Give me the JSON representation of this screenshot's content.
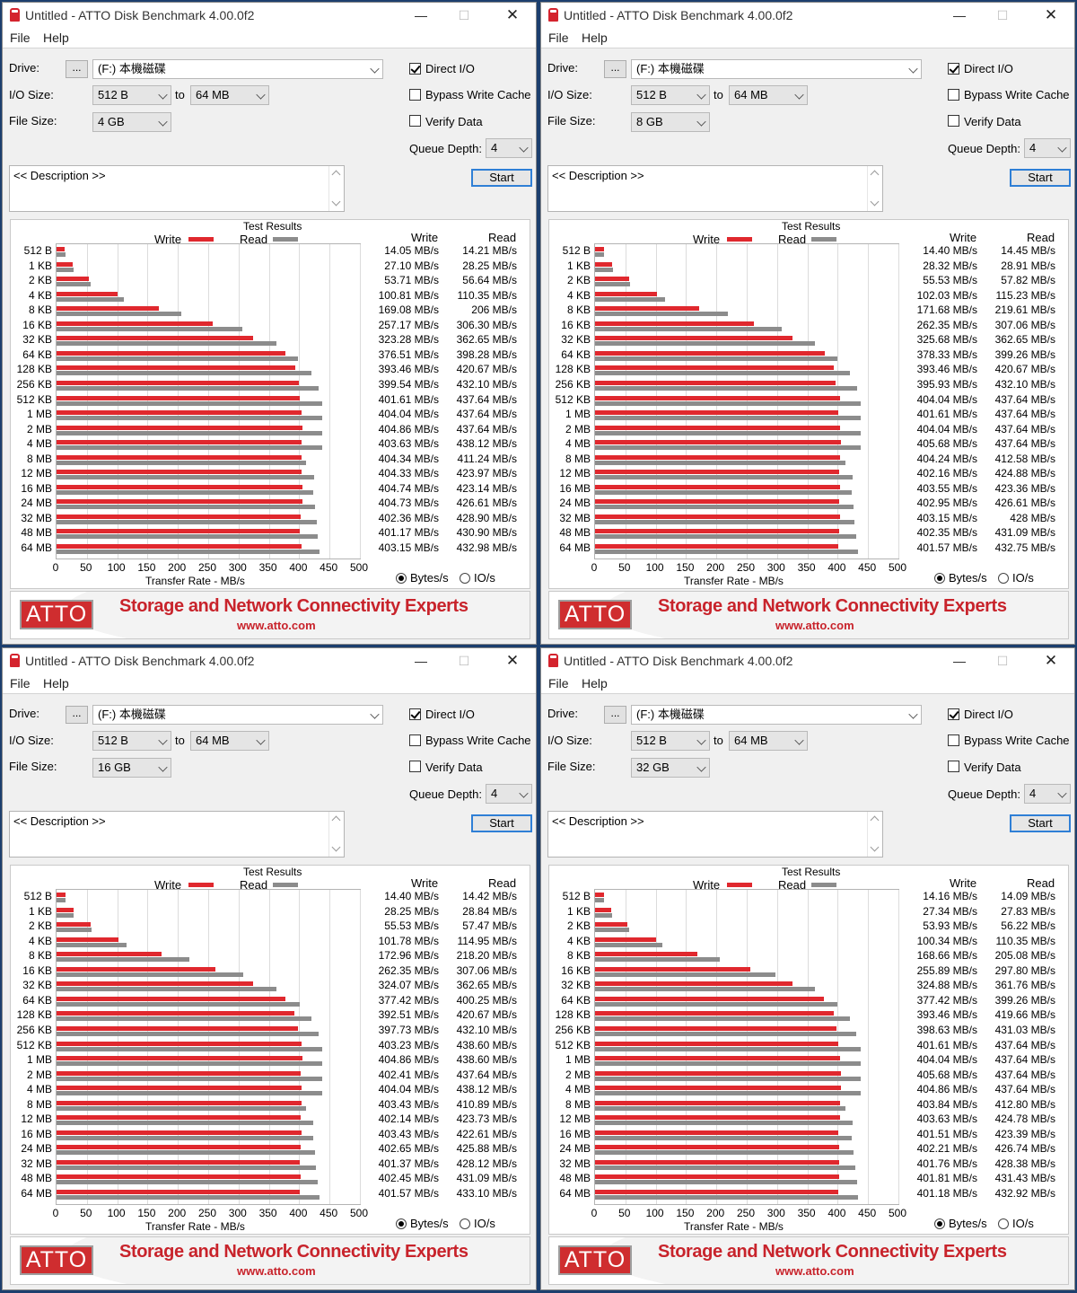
{
  "window": {
    "title": "Untitled - ATTO Disk Benchmark 4.00.0f2",
    "min_glyph": "—",
    "max_glyph": "☐",
    "close_glyph": "✕",
    "menu": [
      "File",
      "Help"
    ]
  },
  "labels": {
    "drive": "Drive:",
    "browse": "...",
    "io_size": "I/O Size:",
    "to": "to",
    "file_size": "File Size:",
    "direct_io": "Direct I/O",
    "bypass_write_cache": "Bypass Write Cache",
    "verify_data": "Verify Data",
    "queue_depth": "Queue Depth:",
    "description": "<< Description >>",
    "start": "Start",
    "test_results": "Test Results",
    "write": "Write",
    "read": "Read",
    "x_axis_label": "Transfer Rate - MB/s",
    "bytes_per_s": "Bytes/s",
    "io_per_s": "IO/s",
    "banner_logo": "ATTO",
    "banner_slogan": "Storage and Network Connectivity Experts",
    "banner_url": "www.atto.com"
  },
  "colors": {
    "write": "#e0282e",
    "read": "#8c8c8c",
    "accent": "#c8232b"
  },
  "chart_data": [
    {
      "type": "bar",
      "title": "Test Results",
      "settings": {
        "drive": "(F:) 本機磁碟",
        "io_min": "512 B",
        "io_max": "64 MB",
        "file_size": "4 GB",
        "queue_depth": "4",
        "direct_io": true,
        "bypass_write_cache": false,
        "verify_data": false,
        "units": "Bytes/s"
      },
      "categories": [
        "512 B",
        "1 KB",
        "2 KB",
        "4 KB",
        "8 KB",
        "16 KB",
        "32 KB",
        "64 KB",
        "128 KB",
        "256 KB",
        "512 KB",
        "1 MB",
        "2 MB",
        "4 MB",
        "8 MB",
        "12 MB",
        "16 MB",
        "24 MB",
        "32 MB",
        "48 MB",
        "64 MB"
      ],
      "x_ticks": [
        "0",
        "50",
        "100",
        "150",
        "200",
        "250",
        "300",
        "350",
        "400",
        "450",
        "500"
      ],
      "xlabel": "Transfer Rate - MB/s",
      "xlim": [
        0,
        500
      ],
      "series": [
        {
          "name": "Write",
          "values": [
            14.05,
            27.1,
            53.71,
            100.81,
            169.08,
            257.17,
            323.28,
            376.51,
            393.46,
            399.54,
            401.61,
            404.04,
            404.86,
            403.63,
            404.34,
            404.33,
            404.74,
            404.73,
            402.36,
            401.17,
            403.15
          ],
          "labels": [
            "14.05 MB/s",
            "27.10 MB/s",
            "53.71 MB/s",
            "100.81 MB/s",
            "169.08 MB/s",
            "257.17 MB/s",
            "323.28 MB/s",
            "376.51 MB/s",
            "393.46 MB/s",
            "399.54 MB/s",
            "401.61 MB/s",
            "404.04 MB/s",
            "404.86 MB/s",
            "403.63 MB/s",
            "404.34 MB/s",
            "404.33 MB/s",
            "404.74 MB/s",
            "404.73 MB/s",
            "402.36 MB/s",
            "401.17 MB/s",
            "403.15 MB/s"
          ]
        },
        {
          "name": "Read",
          "values": [
            14.21,
            28.25,
            56.64,
            110.35,
            206,
            306.3,
            362.65,
            398.28,
            420.67,
            432.1,
            437.64,
            437.64,
            437.64,
            438.12,
            411.24,
            423.97,
            423.14,
            426.61,
            428.9,
            430.9,
            432.98
          ],
          "labels": [
            "14.21 MB/s",
            "28.25 MB/s",
            "56.64 MB/s",
            "110.35 MB/s",
            "206 MB/s",
            "306.30 MB/s",
            "362.65 MB/s",
            "398.28 MB/s",
            "420.67 MB/s",
            "432.10 MB/s",
            "437.64 MB/s",
            "437.64 MB/s",
            "437.64 MB/s",
            "438.12 MB/s",
            "411.24 MB/s",
            "423.97 MB/s",
            "423.14 MB/s",
            "426.61 MB/s",
            "428.90 MB/s",
            "430.90 MB/s",
            "432.98 MB/s"
          ]
        }
      ]
    },
    {
      "type": "bar",
      "title": "Test Results",
      "settings": {
        "drive": "(F:) 本機磁碟",
        "io_min": "512 B",
        "io_max": "64 MB",
        "file_size": "8 GB",
        "queue_depth": "4",
        "direct_io": true,
        "bypass_write_cache": false,
        "verify_data": false,
        "units": "Bytes/s"
      },
      "categories": [
        "512 B",
        "1 KB",
        "2 KB",
        "4 KB",
        "8 KB",
        "16 KB",
        "32 KB",
        "64 KB",
        "128 KB",
        "256 KB",
        "512 KB",
        "1 MB",
        "2 MB",
        "4 MB",
        "8 MB",
        "12 MB",
        "16 MB",
        "24 MB",
        "32 MB",
        "48 MB",
        "64 MB"
      ],
      "x_ticks": [
        "0",
        "50",
        "100",
        "150",
        "200",
        "250",
        "300",
        "350",
        "400",
        "450",
        "500"
      ],
      "xlabel": "Transfer Rate - MB/s",
      "xlim": [
        0,
        500
      ],
      "series": [
        {
          "name": "Write",
          "values": [
            14.4,
            28.32,
            55.53,
            102.03,
            171.68,
            262.35,
            325.68,
            378.33,
            393.46,
            395.93,
            404.04,
            401.61,
            404.04,
            405.68,
            404.24,
            402.16,
            403.55,
            402.95,
            403.15,
            402.35,
            401.57
          ],
          "labels": [
            "14.40 MB/s",
            "28.32 MB/s",
            "55.53 MB/s",
            "102.03 MB/s",
            "171.68 MB/s",
            "262.35 MB/s",
            "325.68 MB/s",
            "378.33 MB/s",
            "393.46 MB/s",
            "395.93 MB/s",
            "404.04 MB/s",
            "401.61 MB/s",
            "404.04 MB/s",
            "405.68 MB/s",
            "404.24 MB/s",
            "402.16 MB/s",
            "403.55 MB/s",
            "402.95 MB/s",
            "403.15 MB/s",
            "402.35 MB/s",
            "401.57 MB/s"
          ]
        },
        {
          "name": "Read",
          "values": [
            14.45,
            28.91,
            57.82,
            115.23,
            219.61,
            307.06,
            362.65,
            399.26,
            420.67,
            432.1,
            437.64,
            437.64,
            437.64,
            437.64,
            412.58,
            424.88,
            423.36,
            426.61,
            428,
            431.09,
            432.75
          ],
          "labels": [
            "14.45 MB/s",
            "28.91 MB/s",
            "57.82 MB/s",
            "115.23 MB/s",
            "219.61 MB/s",
            "307.06 MB/s",
            "362.65 MB/s",
            "399.26 MB/s",
            "420.67 MB/s",
            "432.10 MB/s",
            "437.64 MB/s",
            "437.64 MB/s",
            "437.64 MB/s",
            "437.64 MB/s",
            "412.58 MB/s",
            "424.88 MB/s",
            "423.36 MB/s",
            "426.61 MB/s",
            "428 MB/s",
            "431.09 MB/s",
            "432.75 MB/s"
          ]
        }
      ]
    },
    {
      "type": "bar",
      "title": "Test Results",
      "settings": {
        "drive": "(F:) 本機磁碟",
        "io_min": "512 B",
        "io_max": "64 MB",
        "file_size": "16 GB",
        "queue_depth": "4",
        "direct_io": true,
        "bypass_write_cache": false,
        "verify_data": false,
        "units": "Bytes/s"
      },
      "categories": [
        "512 B",
        "1 KB",
        "2 KB",
        "4 KB",
        "8 KB",
        "16 KB",
        "32 KB",
        "64 KB",
        "128 KB",
        "256 KB",
        "512 KB",
        "1 MB",
        "2 MB",
        "4 MB",
        "8 MB",
        "12 MB",
        "16 MB",
        "24 MB",
        "32 MB",
        "48 MB",
        "64 MB"
      ],
      "x_ticks": [
        "0",
        "50",
        "100",
        "150",
        "200",
        "250",
        "300",
        "350",
        "400",
        "450",
        "500"
      ],
      "xlabel": "Transfer Rate - MB/s",
      "xlim": [
        0,
        500
      ],
      "series": [
        {
          "name": "Write",
          "values": [
            14.4,
            28.25,
            55.53,
            101.78,
            172.96,
            262.35,
            324.07,
            377.42,
            392.51,
            397.73,
            403.23,
            404.86,
            402.41,
            404.04,
            403.43,
            402.14,
            403.43,
            402.65,
            401.37,
            402.45,
            401.57
          ],
          "labels": [
            "14.40 MB/s",
            "28.25 MB/s",
            "55.53 MB/s",
            "101.78 MB/s",
            "172.96 MB/s",
            "262.35 MB/s",
            "324.07 MB/s",
            "377.42 MB/s",
            "392.51 MB/s",
            "397.73 MB/s",
            "403.23 MB/s",
            "404.86 MB/s",
            "402.41 MB/s",
            "404.04 MB/s",
            "403.43 MB/s",
            "402.14 MB/s",
            "403.43 MB/s",
            "402.65 MB/s",
            "401.37 MB/s",
            "402.45 MB/s",
            "401.57 MB/s"
          ]
        },
        {
          "name": "Read",
          "values": [
            14.42,
            28.84,
            57.47,
            114.95,
            218.2,
            307.06,
            362.65,
            400.25,
            420.67,
            432.1,
            438.6,
            438.6,
            437.64,
            438.12,
            410.89,
            423.73,
            422.61,
            425.88,
            428.12,
            431.09,
            433.1
          ],
          "labels": [
            "14.42 MB/s",
            "28.84 MB/s",
            "57.47 MB/s",
            "114.95 MB/s",
            "218.20 MB/s",
            "307.06 MB/s",
            "362.65 MB/s",
            "400.25 MB/s",
            "420.67 MB/s",
            "432.10 MB/s",
            "438.60 MB/s",
            "438.60 MB/s",
            "437.64 MB/s",
            "438.12 MB/s",
            "410.89 MB/s",
            "423.73 MB/s",
            "422.61 MB/s",
            "425.88 MB/s",
            "428.12 MB/s",
            "431.09 MB/s",
            "433.10 MB/s"
          ]
        }
      ]
    },
    {
      "type": "bar",
      "title": "Test Results",
      "settings": {
        "drive": "(F:) 本機磁碟",
        "io_min": "512 B",
        "io_max": "64 MB",
        "file_size": "32 GB",
        "queue_depth": "4",
        "direct_io": true,
        "bypass_write_cache": false,
        "verify_data": false,
        "units": "Bytes/s"
      },
      "categories": [
        "512 B",
        "1 KB",
        "2 KB",
        "4 KB",
        "8 KB",
        "16 KB",
        "32 KB",
        "64 KB",
        "128 KB",
        "256 KB",
        "512 KB",
        "1 MB",
        "2 MB",
        "4 MB",
        "8 MB",
        "12 MB",
        "16 MB",
        "24 MB",
        "32 MB",
        "48 MB",
        "64 MB"
      ],
      "x_ticks": [
        "0",
        "50",
        "100",
        "150",
        "200",
        "250",
        "300",
        "350",
        "400",
        "450",
        "500"
      ],
      "xlabel": "Transfer Rate - MB/s",
      "xlim": [
        0,
        500
      ],
      "series": [
        {
          "name": "Write",
          "values": [
            14.16,
            27.34,
            53.93,
            100.34,
            168.66,
            255.89,
            324.88,
            377.42,
            393.46,
            398.63,
            401.61,
            404.04,
            405.68,
            404.86,
            403.84,
            403.63,
            401.51,
            402.21,
            401.76,
            401.81,
            401.18
          ],
          "labels": [
            "14.16 MB/s",
            "27.34 MB/s",
            "53.93 MB/s",
            "100.34 MB/s",
            "168.66 MB/s",
            "255.89 MB/s",
            "324.88 MB/s",
            "377.42 MB/s",
            "393.46 MB/s",
            "398.63 MB/s",
            "401.61 MB/s",
            "404.04 MB/s",
            "405.68 MB/s",
            "404.86 MB/s",
            "403.84 MB/s",
            "403.63 MB/s",
            "401.51 MB/s",
            "402.21 MB/s",
            "401.76 MB/s",
            "401.81 MB/s",
            "401.18 MB/s"
          ]
        },
        {
          "name": "Read",
          "values": [
            14.09,
            27.83,
            56.22,
            110.35,
            205.08,
            297.8,
            361.76,
            399.26,
            419.66,
            431.03,
            437.64,
            437.64,
            437.64,
            437.64,
            412.8,
            424.78,
            423.39,
            426.74,
            428.38,
            431.43,
            432.92
          ],
          "labels": [
            "14.09 MB/s",
            "27.83 MB/s",
            "56.22 MB/s",
            "110.35 MB/s",
            "205.08 MB/s",
            "297.80 MB/s",
            "361.76 MB/s",
            "399.26 MB/s",
            "419.66 MB/s",
            "431.03 MB/s",
            "437.64 MB/s",
            "437.64 MB/s",
            "437.64 MB/s",
            "437.64 MB/s",
            "412.80 MB/s",
            "424.78 MB/s",
            "423.39 MB/s",
            "426.74 MB/s",
            "428.38 MB/s",
            "431.43 MB/s",
            "432.92 MB/s"
          ]
        }
      ]
    }
  ]
}
